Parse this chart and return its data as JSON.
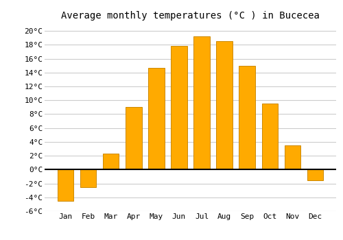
{
  "title": "Average monthly temperatures (°C ) in Bucecea",
  "months": [
    "Jan",
    "Feb",
    "Mar",
    "Apr",
    "May",
    "Jun",
    "Jul",
    "Aug",
    "Sep",
    "Oct",
    "Nov",
    "Dec"
  ],
  "values": [
    -4.5,
    -2.5,
    2.3,
    9.0,
    14.7,
    17.8,
    19.2,
    18.5,
    15.0,
    9.5,
    3.5,
    -1.5
  ],
  "bar_color": "#FFAA00",
  "bar_edge_color": "#CC8800",
  "ylim": [
    -6,
    21
  ],
  "yticks": [
    -6,
    -4,
    -2,
    0,
    2,
    4,
    6,
    8,
    10,
    12,
    14,
    16,
    18,
    20
  ],
  "ytick_labels": [
    "-6°C",
    "-4°C",
    "-2°C",
    "0°C",
    "2°C",
    "4°C",
    "6°C",
    "8°C",
    "10°C",
    "12°C",
    "14°C",
    "16°C",
    "18°C",
    "20°C"
  ],
  "background_color": "#ffffff",
  "grid_color": "#cccccc",
  "title_fontsize": 10,
  "tick_fontsize": 8,
  "zero_line_color": "#000000",
  "bar_width": 0.7
}
